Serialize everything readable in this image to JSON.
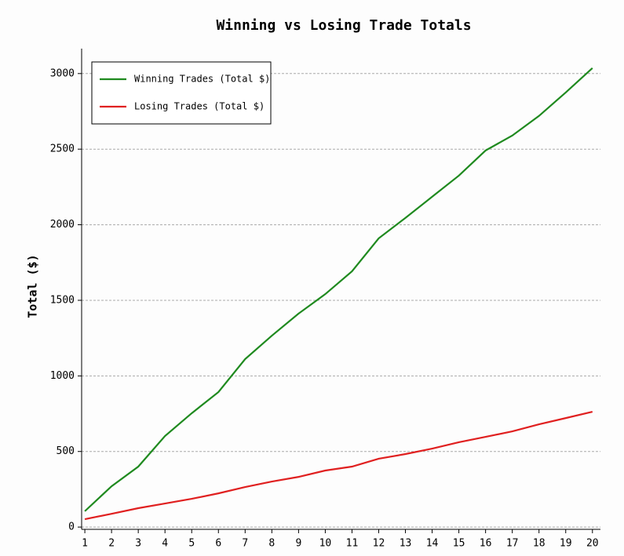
{
  "chart_data": {
    "type": "line",
    "title": "Winning vs Losing Trade Totals",
    "y_label": "Total ($)",
    "x": [
      1,
      2,
      3,
      4,
      5,
      6,
      7,
      8,
      9,
      10,
      11,
      12,
      13,
      14,
      15,
      16,
      17,
      18,
      19,
      20
    ],
    "series": [
      {
        "name": "Winning Trades (Total $)",
        "color": "#1f8a1f",
        "values": [
          105,
          270,
          400,
          602,
          753,
          893,
          1111,
          1266,
          1412,
          1541,
          1692,
          1910,
          2045,
          2185,
          2325,
          2491,
          2590,
          2720,
          2875,
          3036
        ]
      },
      {
        "name": "Losing Trades (Total $)",
        "color": "#e02020",
        "values": [
          52,
          88,
          125,
          156,
          187,
          223,
          265,
          301,
          332,
          374,
          400,
          452,
          483,
          519,
          561,
          597,
          633,
          680,
          721,
          763
        ]
      }
    ],
    "xlim": [
      0.88,
      20.3
    ],
    "xticks": [
      1,
      2,
      3,
      4,
      5,
      6,
      7,
      8,
      9,
      10,
      11,
      12,
      13,
      14,
      15,
      16,
      17,
      18,
      19,
      20
    ],
    "ylim": [
      -15,
      3165
    ],
    "yticks": [
      0,
      500,
      1000,
      1500,
      2000,
      2500,
      3000
    ],
    "grid": true,
    "legend": "upper left"
  }
}
